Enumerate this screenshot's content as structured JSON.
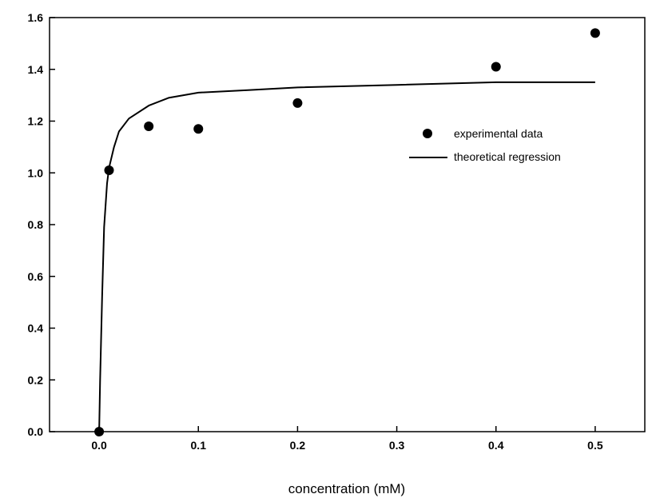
{
  "chart_data": {
    "type": "scatter",
    "xlabel": "concentration (mM)",
    "ylabel": "",
    "xlim": [
      -0.05,
      0.55
    ],
    "ylim": [
      0.0,
      1.6
    ],
    "xticks": [
      "0.0",
      "0.1",
      "0.2",
      "0.3",
      "0.4",
      "0.5"
    ],
    "yticks": [
      "0.0",
      "0.2",
      "0.4",
      "0.6",
      "0.8",
      "1.0",
      "1.2",
      "1.4",
      "1.6"
    ],
    "grid": false,
    "legend_position": "right",
    "series": [
      {
        "name": "experimental data",
        "kind": "points",
        "x": [
          0.0,
          0.01,
          0.05,
          0.1,
          0.2,
          0.4,
          0.5
        ],
        "y": [
          0.0,
          1.01,
          1.18,
          1.17,
          1.27,
          1.41,
          1.54
        ]
      },
      {
        "name": "theoretical regression",
        "kind": "line",
        "x": [
          0.0,
          0.001,
          0.003,
          0.005,
          0.008,
          0.01,
          0.015,
          0.02,
          0.03,
          0.05,
          0.07,
          0.1,
          0.15,
          0.2,
          0.3,
          0.4,
          0.5
        ],
        "y": [
          0.0,
          0.2,
          0.52,
          0.79,
          0.96,
          1.02,
          1.1,
          1.16,
          1.21,
          1.26,
          1.29,
          1.31,
          1.32,
          1.33,
          1.34,
          1.35,
          1.35
        ]
      }
    ]
  }
}
